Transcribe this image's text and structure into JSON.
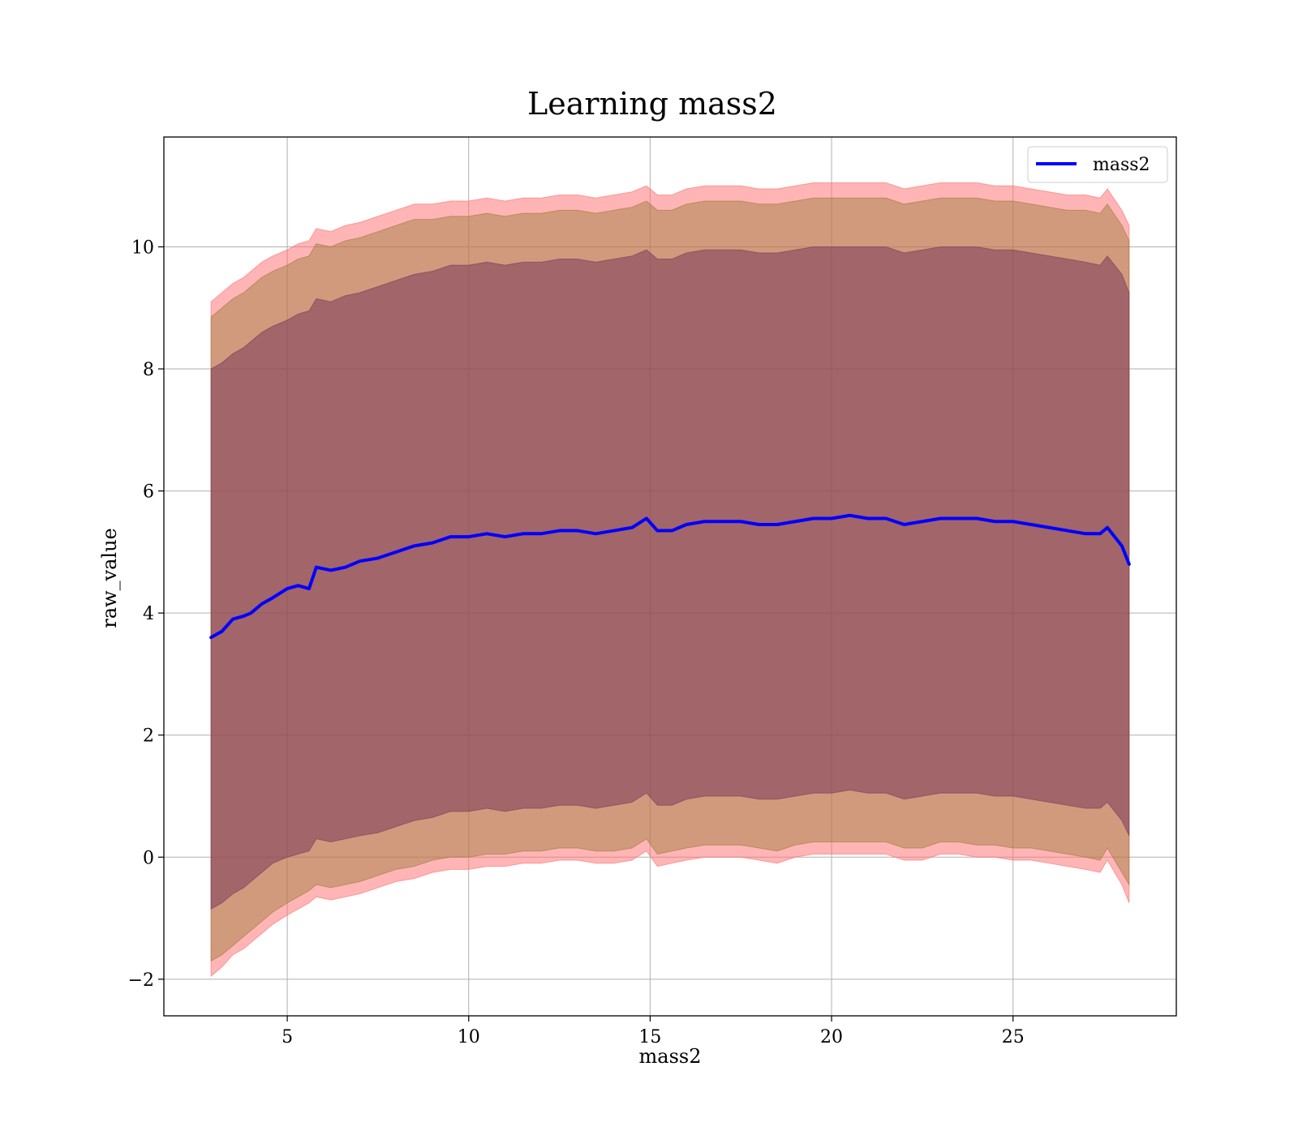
{
  "chart_data": {
    "type": "line",
    "title": "Learning mass2",
    "xlabel": "mass2",
    "ylabel": "raw_value",
    "xlim": [
      1.6,
      29.5
    ],
    "ylim": [
      -2.6,
      11.8
    ],
    "xticks": [
      5,
      10,
      15,
      20,
      25
    ],
    "yticks": [
      -2,
      0,
      2,
      4,
      6,
      8,
      10
    ],
    "ytick_labels": [
      "−2",
      "0",
      "2",
      "4",
      "6",
      "8",
      "10"
    ],
    "grid": true,
    "legend": {
      "position": "top-right",
      "entries": [
        "mass2"
      ]
    },
    "x": [
      2.9,
      3.2,
      3.5,
      3.8,
      4.0,
      4.3,
      4.6,
      5.0,
      5.3,
      5.6,
      5.8,
      6.2,
      6.6,
      7.0,
      7.5,
      8.0,
      8.5,
      9.0,
      9.5,
      10.0,
      10.5,
      11.0,
      11.5,
      12.0,
      12.5,
      13.0,
      13.5,
      14.0,
      14.5,
      14.9,
      15.2,
      15.6,
      16.0,
      16.5,
      17.0,
      17.5,
      18.0,
      18.5,
      19.0,
      19.5,
      20.0,
      20.5,
      21.0,
      21.5,
      22.0,
      22.5,
      23.0,
      23.5,
      24.0,
      24.5,
      25.0,
      25.5,
      26.0,
      26.5,
      27.0,
      27.4,
      27.6,
      28.0,
      28.2
    ],
    "series": [
      {
        "name": "mass2",
        "color": "#0000ff",
        "values": [
          3.6,
          3.7,
          3.9,
          3.95,
          4.0,
          4.15,
          4.25,
          4.4,
          4.45,
          4.4,
          4.75,
          4.7,
          4.75,
          4.85,
          4.9,
          5.0,
          5.1,
          5.15,
          5.25,
          5.25,
          5.3,
          5.25,
          5.3,
          5.3,
          5.35,
          5.35,
          5.3,
          5.35,
          5.4,
          5.55,
          5.35,
          5.35,
          5.45,
          5.5,
          5.5,
          5.5,
          5.45,
          5.45,
          5.5,
          5.55,
          5.55,
          5.6,
          5.55,
          5.55,
          5.45,
          5.5,
          5.55,
          5.55,
          5.55,
          5.5,
          5.5,
          5.45,
          5.4,
          5.35,
          5.3,
          5.3,
          5.4,
          5.1,
          4.8
        ]
      }
    ],
    "bands": [
      {
        "label": "outer",
        "color": "#ff6b6b",
        "opacity": 0.5,
        "lower": [
          -1.95,
          -1.8,
          -1.6,
          -1.5,
          -1.4,
          -1.25,
          -1.1,
          -0.95,
          -0.85,
          -0.75,
          -0.65,
          -0.7,
          -0.65,
          -0.6,
          -0.5,
          -0.4,
          -0.35,
          -0.25,
          -0.2,
          -0.2,
          -0.15,
          -0.15,
          -0.1,
          -0.1,
          -0.05,
          -0.05,
          -0.1,
          -0.1,
          -0.05,
          0.1,
          -0.15,
          -0.1,
          -0.05,
          0.0,
          0.0,
          0.0,
          -0.05,
          -0.1,
          0.0,
          0.05,
          0.05,
          0.05,
          0.05,
          0.05,
          -0.05,
          -0.05,
          0.05,
          0.05,
          0.0,
          0.0,
          -0.05,
          -0.05,
          -0.1,
          -0.15,
          -0.2,
          -0.25,
          -0.05,
          -0.45,
          -0.75
        ],
        "upper": [
          9.1,
          9.25,
          9.4,
          9.5,
          9.6,
          9.75,
          9.85,
          9.95,
          10.05,
          10.1,
          10.3,
          10.25,
          10.35,
          10.4,
          10.5,
          10.6,
          10.7,
          10.7,
          10.75,
          10.75,
          10.8,
          10.75,
          10.8,
          10.8,
          10.85,
          10.85,
          10.8,
          10.85,
          10.9,
          11.0,
          10.85,
          10.85,
          10.95,
          11.0,
          11.0,
          11.0,
          10.95,
          10.95,
          11.0,
          11.05,
          11.05,
          11.05,
          11.05,
          11.05,
          10.95,
          11.0,
          11.05,
          11.05,
          11.05,
          11.0,
          11.0,
          10.95,
          10.9,
          10.85,
          10.85,
          10.8,
          10.95,
          10.6,
          10.35
        ]
      },
      {
        "label": "middle",
        "color": "#9c7a3a",
        "opacity": 0.45,
        "lower": [
          -1.7,
          -1.6,
          -1.45,
          -1.3,
          -1.2,
          -1.05,
          -0.9,
          -0.75,
          -0.65,
          -0.55,
          -0.45,
          -0.5,
          -0.45,
          -0.4,
          -0.3,
          -0.2,
          -0.15,
          -0.05,
          0.0,
          0.0,
          0.05,
          0.05,
          0.1,
          0.1,
          0.15,
          0.15,
          0.1,
          0.1,
          0.15,
          0.3,
          0.05,
          0.1,
          0.15,
          0.2,
          0.2,
          0.2,
          0.15,
          0.1,
          0.2,
          0.25,
          0.25,
          0.25,
          0.25,
          0.25,
          0.15,
          0.15,
          0.25,
          0.25,
          0.2,
          0.2,
          0.15,
          0.15,
          0.1,
          0.05,
          0.0,
          -0.05,
          0.15,
          -0.25,
          -0.45
        ],
        "upper": [
          8.85,
          9.0,
          9.15,
          9.25,
          9.35,
          9.5,
          9.6,
          9.7,
          9.8,
          9.85,
          10.05,
          10.0,
          10.1,
          10.15,
          10.25,
          10.35,
          10.45,
          10.45,
          10.5,
          10.5,
          10.55,
          10.5,
          10.55,
          10.55,
          10.6,
          10.6,
          10.55,
          10.6,
          10.65,
          10.75,
          10.6,
          10.6,
          10.7,
          10.75,
          10.75,
          10.75,
          10.7,
          10.7,
          10.75,
          10.8,
          10.8,
          10.8,
          10.8,
          10.8,
          10.7,
          10.75,
          10.8,
          10.8,
          10.8,
          10.75,
          10.75,
          10.7,
          10.65,
          10.6,
          10.6,
          10.55,
          10.7,
          10.35,
          10.1
        ]
      },
      {
        "label": "inner",
        "color": "#7a3a5a",
        "opacity": 0.55,
        "lower": [
          -0.85,
          -0.75,
          -0.6,
          -0.5,
          -0.4,
          -0.25,
          -0.1,
          0.0,
          0.05,
          0.1,
          0.3,
          0.25,
          0.3,
          0.35,
          0.4,
          0.5,
          0.6,
          0.65,
          0.75,
          0.75,
          0.8,
          0.75,
          0.8,
          0.8,
          0.85,
          0.85,
          0.8,
          0.85,
          0.9,
          1.05,
          0.85,
          0.85,
          0.95,
          1.0,
          1.0,
          1.0,
          0.95,
          0.95,
          1.0,
          1.05,
          1.05,
          1.1,
          1.05,
          1.05,
          0.95,
          1.0,
          1.05,
          1.05,
          1.05,
          1.0,
          1.0,
          0.95,
          0.9,
          0.85,
          0.8,
          0.8,
          0.9,
          0.6,
          0.35
        ],
        "upper": [
          8.0,
          8.1,
          8.25,
          8.35,
          8.45,
          8.6,
          8.7,
          8.8,
          8.9,
          8.95,
          9.15,
          9.1,
          9.2,
          9.25,
          9.35,
          9.45,
          9.55,
          9.6,
          9.7,
          9.7,
          9.75,
          9.7,
          9.75,
          9.75,
          9.8,
          9.8,
          9.75,
          9.8,
          9.85,
          9.95,
          9.8,
          9.8,
          9.9,
          9.95,
          9.95,
          9.95,
          9.9,
          9.9,
          9.95,
          10.0,
          10.0,
          10.0,
          10.0,
          10.0,
          9.9,
          9.95,
          10.0,
          10.0,
          10.0,
          9.95,
          9.95,
          9.9,
          9.85,
          9.8,
          9.75,
          9.7,
          9.85,
          9.55,
          9.25
        ]
      }
    ]
  }
}
